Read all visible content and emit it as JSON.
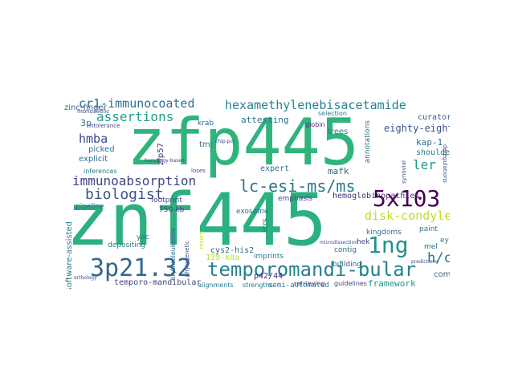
{
  "words": {
    "znf445": "znf445",
    "zfp445": "zfp445",
    "temporomandi_bular": "temporomandi-bular",
    "w3p21_32": "3p21.32",
    "lc_esi_ms_ms": "lc-esi-ms/ms",
    "hexamethylenebisacetamide": "hexamethylenebisacetamide",
    "cr1_immunocoated": "cr1-immunocoated",
    "immunoabsorption": "immunoabsorption",
    "biologist": "biologist",
    "assertions": "assertions",
    "w5x103": "5x103",
    "w1ng": "1ng",
    "disk_condyle": "disk-condyle",
    "hmba": "hmba",
    "h_c": "h/c",
    "hemoglobinopathies": "hemoglobinopathies",
    "eighty_eight": "eighty-eight",
    "kap_1": "kap-1",
    "ler": "ler",
    "curators": "curators",
    "shoulder": "shoulder",
    "framework": "framework",
    "semi_automated": "semi-automated",
    "temporo_mandibular": "temporo-mandibular",
    "cys2_his2": "cys2-his2",
    "w139_kda": "139-kda",
    "p42_44": "p42/44",
    "software_assisted": "software-assisted",
    "zinc_finger": "zinc-finger",
    "attesting": "attesting",
    "expert": "expert",
    "mafk": "mafk",
    "emphasis": "emphasis",
    "kingdoms": "kingdoms",
    "paint": "paint",
    "mel": "mel",
    "ey": "ey",
    "comt": "comt",
    "hek": "hek",
    "contig": "contig",
    "building": "building",
    "pipeline": "pipeline",
    "footprint": "footprint",
    "w750_kb": "750-kb",
    "exosome": "exosome",
    "yac": "yac",
    "depositing": "depositing",
    "imprints": "imprints",
    "retrieving": "retrieving",
    "guidelines": "guidelines",
    "alignments": "alignments",
    "strengths": "strengths",
    "explicit": "explicit",
    "picked": "picked",
    "w3p": "3p",
    "zfp57": "zfp57",
    "tmj": "tmj",
    "krab": "krab",
    "inferences": "inferences",
    "selection": "selection",
    "trees": "trees",
    "globin": "globin",
    "annotations": "annotations",
    "icrs": "icrs",
    "monoallelic": "monoallelic",
    "intolerance": "intolerance",
    "homology_based": "homology-based",
    "loses": "loses",
    "erythroleukemia": "erythroleukemia",
    "phylogenetic": "phylogenetic",
    "record": "record",
    "chip_pcr": "chip-pcr",
    "synovial": "synovial",
    "microdissection": "microdissection",
    "orthology": "orthology",
    "predictions": "predictions",
    "deregulations": "deregulations"
  }
}
